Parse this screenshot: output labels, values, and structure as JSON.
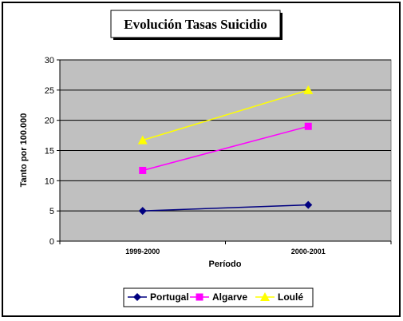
{
  "chart_data": {
    "type": "line",
    "title": "Evolución Tasas Suicidio",
    "xlabel": "Período",
    "ylabel": "Tanto por 100.000",
    "categories": [
      "1999-2000",
      "2000-2001"
    ],
    "ylim": [
      0,
      30
    ],
    "yticks": [
      0,
      5,
      10,
      15,
      20,
      25,
      30
    ],
    "grid": true,
    "legend_position": "bottom",
    "plot_background": "#c0c0c0",
    "series": [
      {
        "name": "Portugal",
        "values": [
          5,
          6
        ],
        "color": "#000080",
        "marker": "diamond"
      },
      {
        "name": "Algarve",
        "values": [
          11.7,
          19
        ],
        "color": "#ff00ff",
        "marker": "square"
      },
      {
        "name": "Loulé",
        "values": [
          16.7,
          25
        ],
        "color": "#ffff00",
        "marker": "triangle"
      }
    ]
  }
}
